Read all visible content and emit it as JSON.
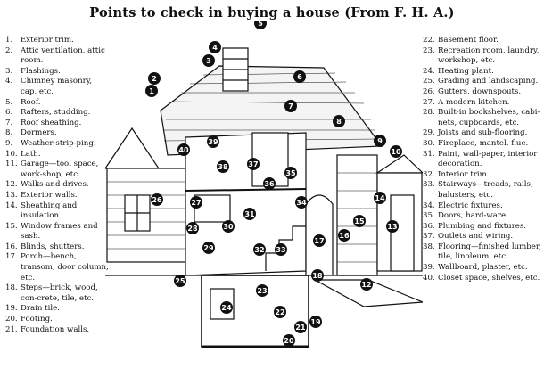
{
  "title": "Points to check in buying a house (From F. H. A.)",
  "left_items": [
    {
      "num": "1.",
      "text": "Exterior trim."
    },
    {
      "num": "2.",
      "text": "Attic ventilation, attic room."
    },
    {
      "num": "3.",
      "text": "Flashings."
    },
    {
      "num": "4.",
      "text": "Chimney masonry, cap, etc."
    },
    {
      "num": "5.",
      "text": "Roof."
    },
    {
      "num": "6.",
      "text": "Rafters, studding."
    },
    {
      "num": "7.",
      "text": "Roof sheathing."
    },
    {
      "num": "8.",
      "text": "Dormers."
    },
    {
      "num": "9.",
      "text": "Weather-strip-ping."
    },
    {
      "num": "10.",
      "text": "Lath."
    },
    {
      "num": "11.",
      "text": "Garage—tool space, work-shop, etc."
    },
    {
      "num": "12.",
      "text": "Walks and drives."
    },
    {
      "num": "13.",
      "text": "Exterior walls."
    },
    {
      "num": "14.",
      "text": "Sheathing and insulation."
    },
    {
      "num": "15.",
      "text": "Window frames and sash."
    },
    {
      "num": "16.",
      "text": "Blinds, shutters."
    },
    {
      "num": "17.",
      "text": "Porch—bench, transom, door column, etc."
    },
    {
      "num": "18.",
      "text": "Steps—brick, wood, con-crete, tile, etc."
    },
    {
      "num": "19.",
      "text": "Drain tile."
    },
    {
      "num": "20.",
      "text": "Footing."
    },
    {
      "num": "21.",
      "text": "Foundation walls."
    }
  ],
  "right_items": [
    {
      "num": "22.",
      "text": "Basement floor."
    },
    {
      "num": "23.",
      "text": "Recreation room, laundry, workshop, etc."
    },
    {
      "num": "24.",
      "text": "Heating plant."
    },
    {
      "num": "25.",
      "text": "Grading and landscaping."
    },
    {
      "num": "26.",
      "text": "Gutters, downspouts."
    },
    {
      "num": "27.",
      "text": "A modern kitchen."
    },
    {
      "num": "28.",
      "text": "Built-in bookshelves, cabi-nets, cupboards, etc."
    },
    {
      "num": "29.",
      "text": "Joists and sub-flooring."
    },
    {
      "num": "30.",
      "text": "Fireplace, mantel, flue."
    },
    {
      "num": "31.",
      "text": "Paint, wall-paper, interior decoration."
    },
    {
      "num": "32.",
      "text": "Interior trim."
    },
    {
      "num": "33.",
      "text": "Stairways—treads, rails, balusters, etc."
    },
    {
      "num": "34.",
      "text": "Electric fixtures."
    },
    {
      "num": "35.",
      "text": "Doors, hard-ware."
    },
    {
      "num": "36.",
      "text": "Plumbing and fixtures."
    },
    {
      "num": "37.",
      "text": "Outlets and wiring."
    },
    {
      "num": "38.",
      "text": "Flooring—finished lumber, tile, linoleum, etc."
    },
    {
      "num": "39.",
      "text": "Wallboard, plaster, etc."
    },
    {
      "num": "40.",
      "text": "Closet space, shelves, etc."
    }
  ],
  "markers": [
    "1",
    "2",
    "3",
    "4",
    "5",
    "6",
    "7",
    "8",
    "9",
    "10",
    "11",
    "12",
    "13",
    "14",
    "15",
    "16",
    "17",
    "18",
    "19",
    "20",
    "21",
    "22",
    "23",
    "24",
    "25",
    "26",
    "27",
    "28",
    "29",
    "30",
    "31",
    "32",
    "33",
    "34",
    "35",
    "36",
    "37",
    "38",
    "39",
    "40"
  ]
}
